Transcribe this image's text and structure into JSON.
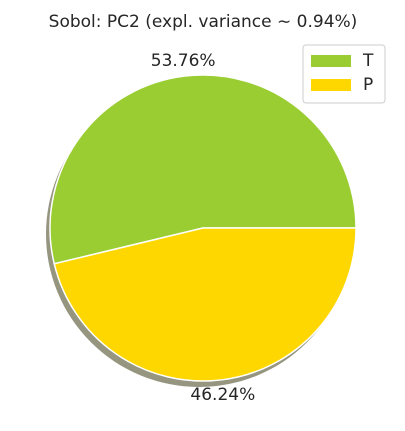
{
  "chart_data": {
    "type": "pie",
    "title": "Sobol: PC2 (expl. variance  ∼ 0.94%)",
    "categories": [
      "T",
      "P"
    ],
    "values": [
      53.76,
      46.24
    ],
    "value_labels": [
      "53.76%",
      "46.24%"
    ],
    "colors": [
      "#9acd32",
      "#ffd700"
    ],
    "start_angle": 0,
    "counterclock": true,
    "shadow": true,
    "legend": "upper right"
  }
}
